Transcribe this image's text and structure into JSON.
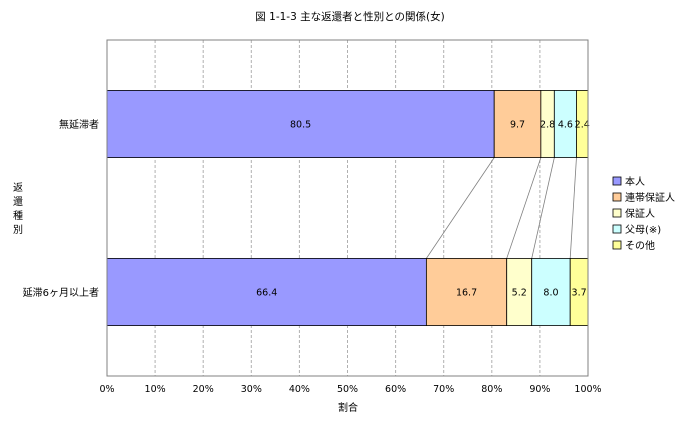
{
  "chart_data": {
    "type": "bar",
    "orientation": "horizontal",
    "stacked": "percent",
    "title": "図 1-1-3  主な返還者と性別との関係(女)",
    "ylabel": "返還種別",
    "xlabel": "割合",
    "xlim": [
      0,
      100
    ],
    "x_ticks": [
      "0%",
      "10%",
      "20%",
      "30%",
      "40%",
      "50%",
      "60%",
      "70%",
      "80%",
      "90%",
      "100%"
    ],
    "grid": "vertical",
    "legend_position": "right",
    "series_connector_lines": true,
    "categories": [
      "無延滞者",
      "延滞6ヶ月以上者"
    ],
    "series": [
      {
        "name": "本人",
        "values": [
          80.5,
          66.4
        ],
        "color": "#9999ff"
      },
      {
        "name": "連帯保証人",
        "values": [
          9.7,
          16.7
        ],
        "color": "#ffcc99"
      },
      {
        "name": "保証人",
        "values": [
          2.8,
          5.2
        ],
        "color": "#ffffcc"
      },
      {
        "name": "父母(※)",
        "values": [
          4.6,
          8.0
        ],
        "color": "#ccffff"
      },
      {
        "name": "その他",
        "values": [
          2.4,
          3.7
        ],
        "color": "#ffff99"
      }
    ]
  }
}
